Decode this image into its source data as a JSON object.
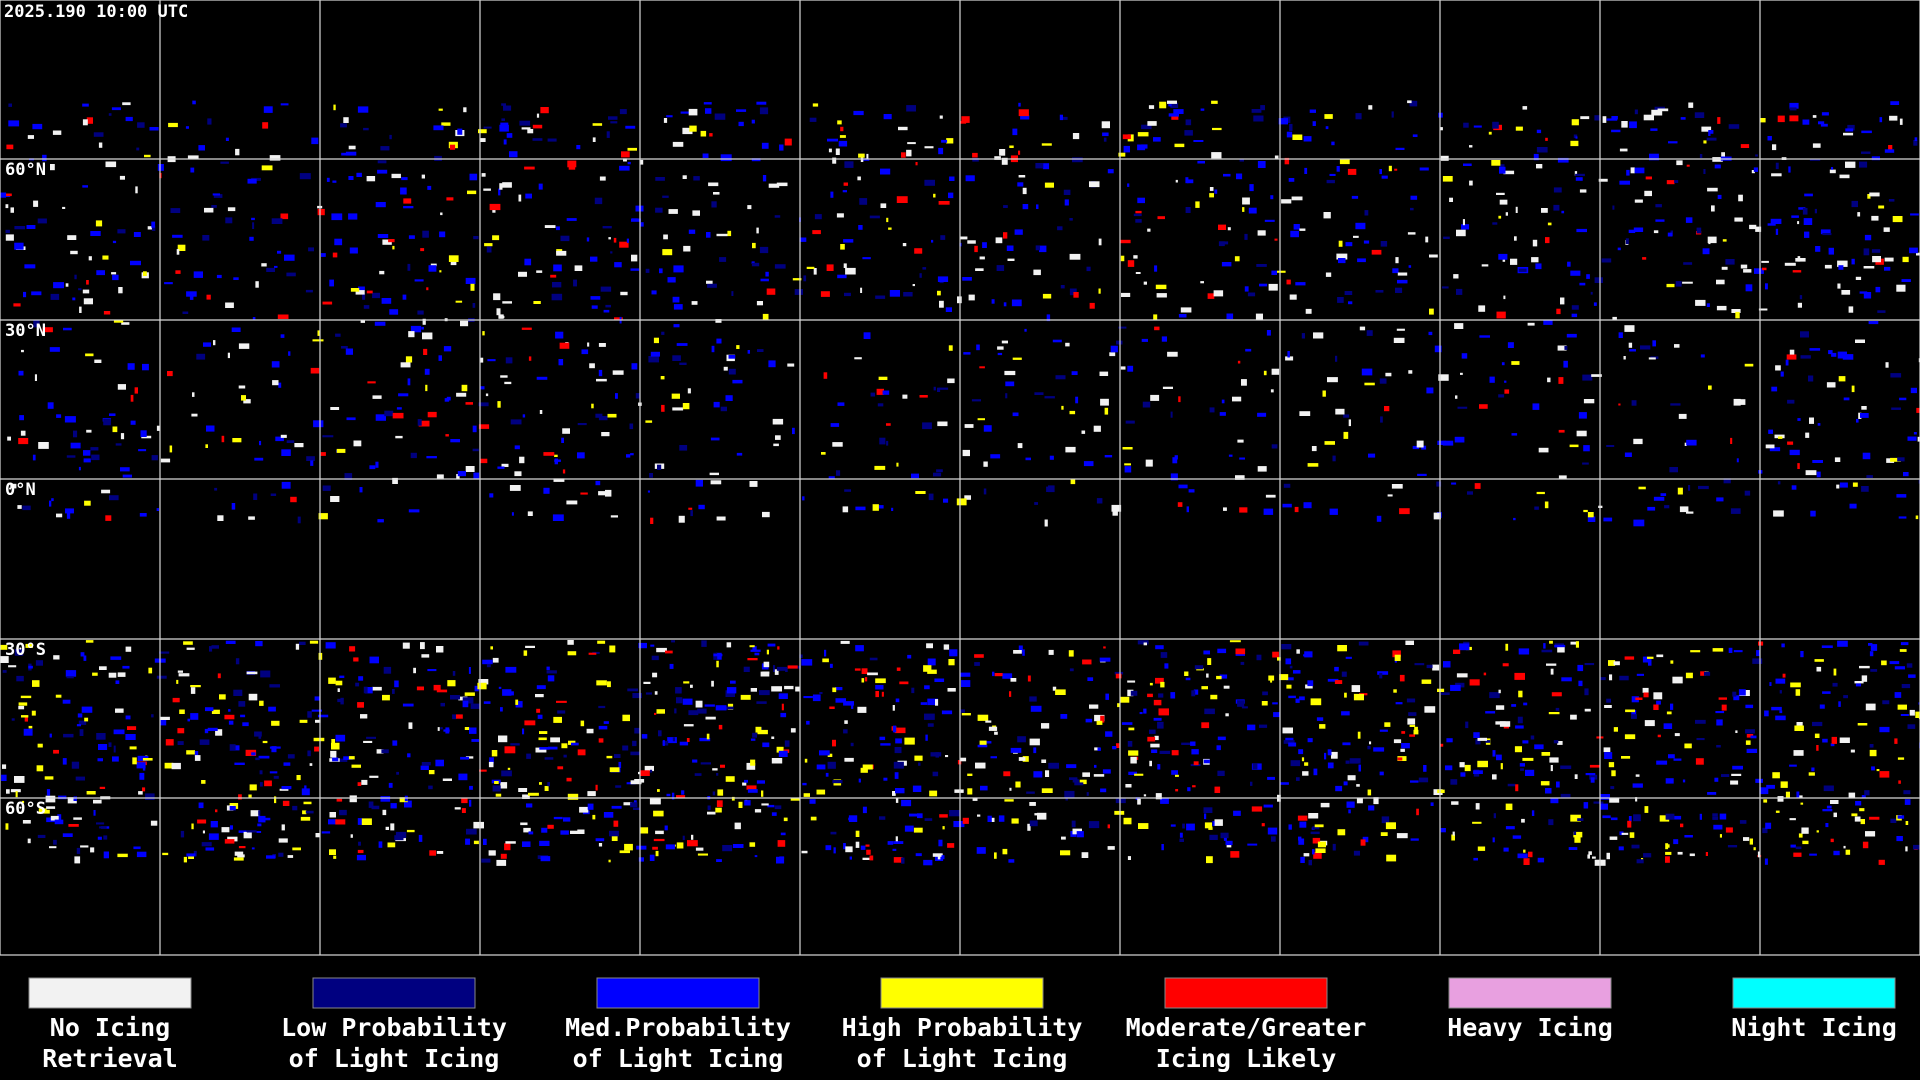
{
  "title": "2025.190 10:00 UTC",
  "latitude_labels": [
    "60°N",
    "30°N",
    "0°N",
    "30°S",
    "60°S"
  ],
  "legend": [
    {
      "lines": [
        "No Icing",
        "Retrieval"
      ],
      "color": "#f2f2f2"
    },
    {
      "lines": [
        "Low Probability",
        "of Light Icing"
      ],
      "color": "#000080"
    },
    {
      "lines": [
        "Med.Probability",
        "of Light Icing"
      ],
      "color": "#0000ff"
    },
    {
      "lines": [
        "High Probability",
        "of Light Icing"
      ],
      "color": "#ffff00"
    },
    {
      "lines": [
        "Moderate/Greater",
        "Icing Likely"
      ],
      "color": "#ff0000"
    },
    {
      "lines": [
        "Heavy Icing"
      ],
      "color": "#e8a0e0"
    },
    {
      "lines": [
        "Night Icing"
      ],
      "color": "#00ffff"
    }
  ]
}
